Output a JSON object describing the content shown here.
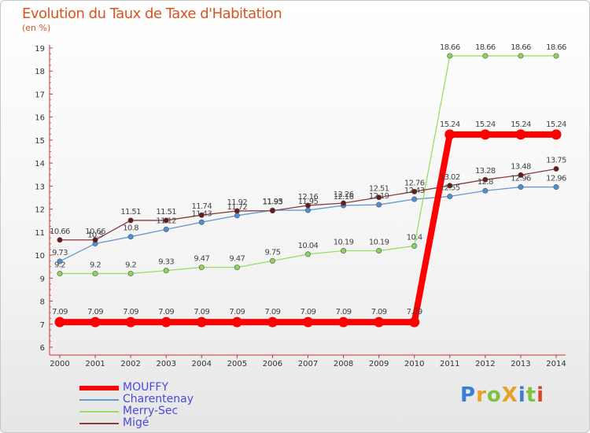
{
  "header": {
    "title": "Evolution du Taux de Taxe d'Habitation",
    "unit": "(en %)"
  },
  "logo": {
    "text": "ProXiti",
    "colors": [
      "#3a7fd5",
      "#e8a028",
      "#7dc243",
      "#e8a028",
      "#3a7fd5",
      "#7dc243",
      "#d8442d"
    ]
  },
  "chart_data": {
    "type": "line",
    "title": "Evolution du Taux de Taxe d'Habitation",
    "ylabel": "(en %)",
    "xlabel": "",
    "ylim": [
      6,
      19
    ],
    "grid": false,
    "legend_position": "bottom-left",
    "categories": [
      "2000",
      "2001",
      "2002",
      "2003",
      "2004",
      "2005",
      "2006",
      "2007",
      "2008",
      "2009",
      "2010",
      "2011",
      "2012",
      "2013",
      "2014"
    ],
    "yticks": [
      6,
      7,
      8,
      9,
      10,
      11,
      12,
      13,
      14,
      15,
      16,
      17,
      18,
      19
    ],
    "series": [
      {
        "name": "MOUFFY",
        "color": "#ff0000",
        "marker_fill": "#ff0000",
        "emphasis": true,
        "values": [
          7.09,
          7.09,
          7.09,
          7.09,
          7.09,
          7.09,
          7.09,
          7.09,
          7.09,
          7.09,
          7.09,
          15.24,
          15.24,
          15.24,
          15.24
        ],
        "labels": [
          "7.09",
          "7.09",
          "7.09",
          "7.09",
          "7.09",
          "7.09",
          "7.09",
          "7.09",
          "7.09",
          "7.09",
          "7.09",
          "15.24",
          "15.24",
          "15.24",
          "15.24"
        ]
      },
      {
        "name": "Charentenay",
        "color": "#6699cc",
        "marker_fill": "#4a90d9",
        "values": [
          9.73,
          10.5,
          10.8,
          11.12,
          11.43,
          11.72,
          11.95,
          11.95,
          12.16,
          12.19,
          12.43,
          12.55,
          12.8,
          12.96,
          12.96
        ],
        "labels": [
          "9.73",
          "10.5",
          "10.8",
          "11.12",
          "11.43",
          "11.72",
          "11.95",
          "11.95",
          "12.16",
          "12.19",
          "12.43",
          "12.55",
          "12.8",
          "12.96",
          "12.96"
        ]
      },
      {
        "name": "Merry-Sec",
        "color": "#99dd66",
        "marker_fill": "#8cd45a",
        "values": [
          9.2,
          9.2,
          9.2,
          9.33,
          9.47,
          9.47,
          9.75,
          10.04,
          10.19,
          10.19,
          10.4,
          18.66,
          18.66,
          18.66,
          18.66
        ],
        "labels": [
          "9.2",
          "9.2",
          "9.2",
          "9.33",
          "9.47",
          "9.47",
          "9.75",
          "10.04",
          "10.19",
          "10.19",
          "10.4",
          "18.66",
          "18.66",
          "18.66",
          "18.66"
        ]
      },
      {
        "name": "Migé",
        "color": "#8b3a3a",
        "marker_fill": "#6b1818",
        "values": [
          10.66,
          10.66,
          11.51,
          11.51,
          11.74,
          11.92,
          11.93,
          12.16,
          12.26,
          12.51,
          12.76,
          13.02,
          13.28,
          13.48,
          13.75
        ],
        "labels": [
          "10.66",
          "10.66",
          "11.51",
          "11.51",
          "11.74",
          "11.92",
          "11.93",
          "12.16",
          "12.26",
          "12.51",
          "12.76",
          "13.02",
          "13.28",
          "13.48",
          "13.75"
        ]
      }
    ]
  }
}
